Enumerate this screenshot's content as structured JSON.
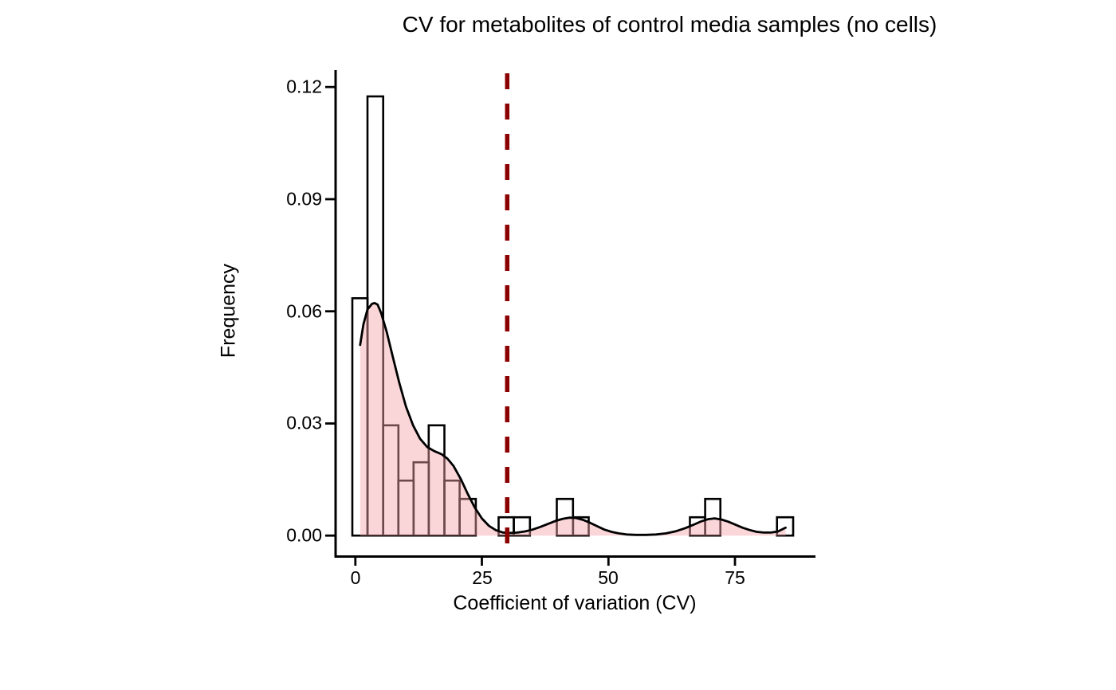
{
  "chart_data": {
    "type": "histogram",
    "title": "CV for metabolites of control media samples (no cells)",
    "xlabel": "Coefficient of variation (CV)",
    "ylabel": "Frequency",
    "x_ticks": [
      0,
      25,
      50,
      75
    ],
    "x_tick_labels": [
      "0",
      "25",
      "50",
      "75"
    ],
    "y_ticks": [
      0,
      0.03,
      0.06,
      0.09,
      0.12
    ],
    "y_tick_labels": [
      "0.00",
      "0.03",
      "0.06",
      "0.09",
      "0.12"
    ],
    "xlim": [
      -3.9,
      90.9
    ],
    "ylim": [
      -0.0055,
      0.1241
    ],
    "grid": false,
    "legend": false,
    "cutoff_line": {
      "x": 30,
      "style": "dashed",
      "color": "#8B0000"
    },
    "bars": [
      {
        "x0": -0.6,
        "x1": 2.4,
        "y": 0.0635
      },
      {
        "x0": 2.4,
        "x1": 5.5,
        "y": 0.1175
      },
      {
        "x0": 5.5,
        "x1": 8.5,
        "y": 0.0295
      },
      {
        "x0": 8.5,
        "x1": 11.5,
        "y": 0.0147
      },
      {
        "x0": 11.5,
        "x1": 14.5,
        "y": 0.0196
      },
      {
        "x0": 14.5,
        "x1": 17.6,
        "y": 0.0295
      },
      {
        "x0": 17.6,
        "x1": 20.6,
        "y": 0.0147
      },
      {
        "x0": 20.6,
        "x1": 23.8,
        "y": 0.0098
      },
      {
        "x0": 28.3,
        "x1": 31.3,
        "y": 0.0049
      },
      {
        "x0": 31.3,
        "x1": 34.5,
        "y": 0.0049
      },
      {
        "x0": 39.8,
        "x1": 43.0,
        "y": 0.0098
      },
      {
        "x0": 43.0,
        "x1": 46.1,
        "y": 0.0049
      },
      {
        "x0": 66.1,
        "x1": 69.1,
        "y": 0.0049
      },
      {
        "x0": 69.1,
        "x1": 72.1,
        "y": 0.0098
      },
      {
        "x0": 83.3,
        "x1": 86.5,
        "y": 0.0049
      }
    ],
    "density_curve": [
      [
        0.95,
        0.051
      ],
      [
        1.6,
        0.0565
      ],
      [
        2.4,
        0.0605
      ],
      [
        3.3,
        0.062
      ],
      [
        3.8,
        0.0622
      ],
      [
        4.4,
        0.0618
      ],
      [
        5.1,
        0.0595
      ],
      [
        6.2,
        0.0545
      ],
      [
        7.4,
        0.0478
      ],
      [
        8.7,
        0.0408
      ],
      [
        10.0,
        0.0345
      ],
      [
        11.4,
        0.0295
      ],
      [
        12.8,
        0.0259
      ],
      [
        14.2,
        0.0237
      ],
      [
        15.6,
        0.0226
      ],
      [
        17.0,
        0.0218
      ],
      [
        18.2,
        0.0206
      ],
      [
        19.4,
        0.0186
      ],
      [
        20.8,
        0.0152
      ],
      [
        22.2,
        0.0112
      ],
      [
        23.6,
        0.0075
      ],
      [
        25.0,
        0.0046
      ],
      [
        26.4,
        0.0026
      ],
      [
        27.8,
        0.0014
      ],
      [
        29.2,
        0.0008
      ],
      [
        30.6,
        0.0007
      ],
      [
        32.0,
        0.0008
      ],
      [
        33.5,
        0.0011
      ],
      [
        35.0,
        0.0016
      ],
      [
        36.5,
        0.0023
      ],
      [
        38.0,
        0.0031
      ],
      [
        39.5,
        0.0039
      ],
      [
        41.0,
        0.0045
      ],
      [
        42.3,
        0.0048
      ],
      [
        43.6,
        0.0047
      ],
      [
        45.0,
        0.0042
      ],
      [
        46.4,
        0.0034
      ],
      [
        47.8,
        0.0025
      ],
      [
        49.2,
        0.0016
      ],
      [
        50.6,
        0.001
      ],
      [
        52.0,
        0.0006
      ],
      [
        53.6,
        0.0003
      ],
      [
        55.4,
        0.0002
      ],
      [
        57.4,
        0.0002
      ],
      [
        59.4,
        0.0003
      ],
      [
        61.4,
        0.0006
      ],
      [
        63.4,
        0.0012
      ],
      [
        65.2,
        0.002
      ],
      [
        66.8,
        0.0029
      ],
      [
        68.3,
        0.0038
      ],
      [
        69.7,
        0.0044
      ],
      [
        71.0,
        0.0046
      ],
      [
        72.3,
        0.0043
      ],
      [
        73.7,
        0.0037
      ],
      [
        75.1,
        0.0029
      ],
      [
        76.5,
        0.0021
      ],
      [
        77.9,
        0.0015
      ],
      [
        79.3,
        0.001
      ],
      [
        80.7,
        0.0008
      ],
      [
        82.1,
        0.0008
      ],
      [
        83.5,
        0.0011
      ],
      [
        85.0,
        0.0021
      ]
    ],
    "colors": {
      "background": "#FFFFFF",
      "axis": "#000000",
      "text": "#000000",
      "bar_fill": "none",
      "bar_outline": "#000000",
      "density_fill": "rgba(244,164,170,0.45)",
      "density_line": "#000000",
      "cutoff": "#8B0000"
    }
  }
}
